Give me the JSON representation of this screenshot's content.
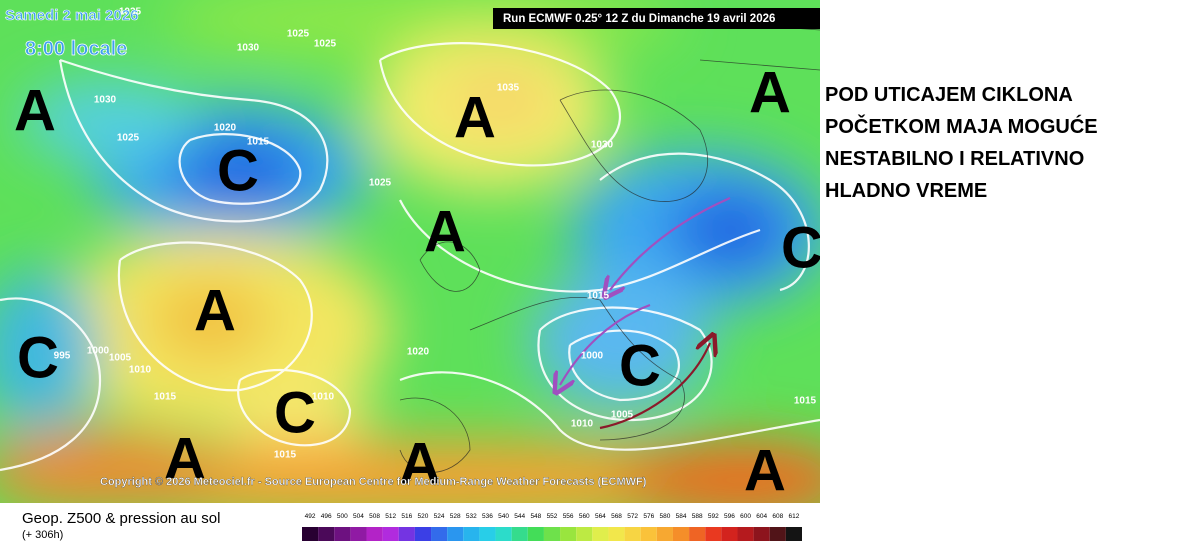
{
  "map": {
    "date": "Samedi 2 mai 2026",
    "time": "8:00 locale",
    "run": "Run ECMWF 0.25° 12 Z du Dimanche 19 avril 2026",
    "copyright": "Copyright © 2026 Meteociel.fr - Source European Centre for Medium-Range Weather Forecasts (ECMWF)",
    "centers": [
      "A",
      "A",
      "C",
      "A",
      "A",
      "C",
      "A",
      "C",
      "C",
      "C",
      "A",
      "A",
      "A"
    ],
    "isobars": [
      "1035",
      "1030",
      "1025",
      "1025",
      "1030",
      "1025",
      "1020",
      "1015",
      "1025",
      "1035",
      "1030",
      "1015",
      "1020",
      "1000",
      "1005",
      "1010",
      "995",
      "1000",
      "1005",
      "1010",
      "1015",
      "1010",
      "1015",
      "1015"
    ]
  },
  "headline": {
    "lines": [
      "POD UTICAJEM CIKLONA",
      "POČETKOM MAJA MOGUĆE",
      "NESTABILNO I RELATIVNO",
      "HLADNO VREME"
    ]
  },
  "legend": {
    "title": "Geop. Z500 & pression au sol",
    "lead": "(+ 306h)",
    "scale": [
      492,
      496,
      500,
      504,
      508,
      512,
      516,
      520,
      524,
      528,
      532,
      536,
      540,
      544,
      548,
      552,
      556,
      560,
      564,
      568,
      572,
      576,
      580,
      584,
      588,
      592,
      596,
      600,
      604,
      608,
      612
    ]
  }
}
